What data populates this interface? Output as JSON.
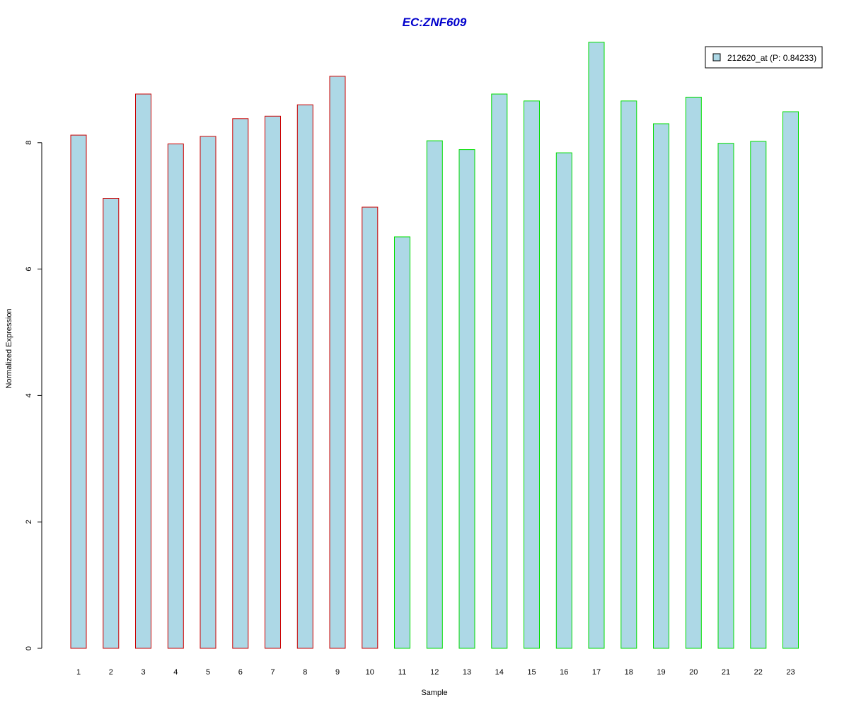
{
  "chart_data": {
    "type": "bar",
    "title": "EC:ZNF609",
    "xlabel": "Sample",
    "ylabel": "Normalized Expression",
    "ylim": [
      0,
      9.6
    ],
    "yticks": [
      "0",
      "2",
      "4",
      "6",
      "8"
    ],
    "categories": [
      "1",
      "2",
      "3",
      "4",
      "5",
      "6",
      "7",
      "8",
      "9",
      "10",
      "11",
      "12",
      "13",
      "14",
      "15",
      "16",
      "17",
      "18",
      "19",
      "20",
      "21",
      "22",
      "23"
    ],
    "series": [
      {
        "name": "212620_at (P: 0.84233)",
        "values": [
          8.12,
          7.12,
          8.77,
          7.98,
          8.1,
          8.38,
          8.42,
          8.6,
          9.05,
          6.98,
          6.51,
          8.03,
          7.89,
          8.77,
          8.66,
          7.84,
          9.59,
          8.66,
          8.3,
          8.72,
          7.99,
          8.02,
          8.49
        ]
      }
    ],
    "group_colors": [
      "#cc0000",
      "#cc0000",
      "#cc0000",
      "#cc0000",
      "#cc0000",
      "#cc0000",
      "#cc0000",
      "#cc0000",
      "#cc0000",
      "#cc0000",
      "#00dd00",
      "#00dd00",
      "#00dd00",
      "#00dd00",
      "#00dd00",
      "#00dd00",
      "#00dd00",
      "#00dd00",
      "#00dd00",
      "#00dd00",
      "#00dd00",
      "#00dd00",
      "#00dd00"
    ],
    "bar_fill": "#add8e6",
    "title_color": "#0000cc",
    "legend_position": "top-right",
    "grid": false
  }
}
